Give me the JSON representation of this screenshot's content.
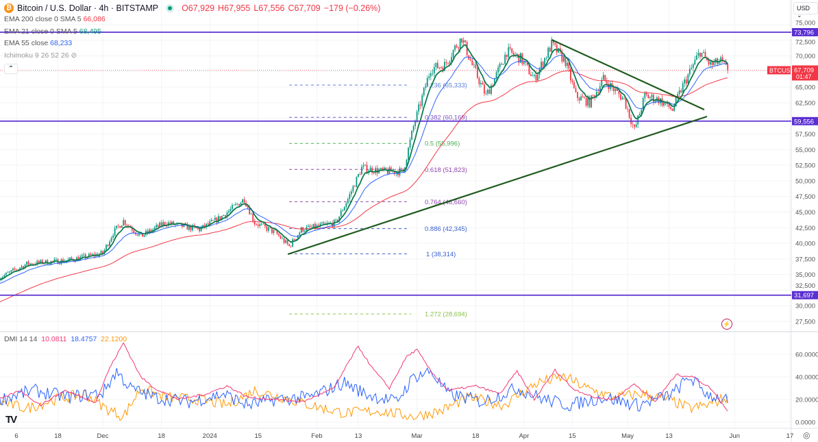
{
  "header": {
    "symbol_title": "Bitcoin / U.S. Dollar · 4h · BITSTAMP",
    "open": "O67,929",
    "high": "H67,955",
    "low": "L67,556",
    "close": "C67,709",
    "change": "−179 (−0.26%)",
    "currency": "USD"
  },
  "indicators": [
    {
      "label": "EMA 200 close 0 SMA 5",
      "value": "66,086",
      "color": "#f23645"
    },
    {
      "label": "EMA 21 close 0 SMA 5",
      "value": "68,495",
      "color": "#089981"
    },
    {
      "label": "EMA 55 close",
      "value": "68,233",
      "color": "#2962ff"
    },
    {
      "label": "Ichimoku 9 26 52 26",
      "value": ""
    }
  ],
  "dmi": {
    "label": "DMI 14 14",
    "adx": "10.0811",
    "plus_di": "18.4757",
    "minus_di": "22.1200"
  },
  "colors": {
    "up": "#089981",
    "down": "#f23645",
    "hline": "#5b2fd1",
    "trend": "#1e5a1e",
    "ema200": "#f23645",
    "ema55": "#2962ff",
    "ema21": "#0d7a4e",
    "adx": "#f23674",
    "plus_di": "#2962ff",
    "minus_di": "#ff9800"
  },
  "price_axis": {
    "ticks": [
      "75,000",
      "72,500",
      "70,000",
      "65,000",
      "62,500",
      "57,500",
      "55,000",
      "52,500",
      "50,000",
      "47,500",
      "45,000",
      "42,500",
      "40,000",
      "37,500",
      "35,000",
      "32,500",
      "30,000",
      "27,500"
    ],
    "min": 27500,
    "max": 75000,
    "last_price_tag": {
      "symbol": "BTCUSD",
      "price": "67,709",
      "countdown": "01:47",
      "value": 67709
    }
  },
  "dmi_axis": {
    "ticks": [
      "60.0000",
      "40.0000",
      "20.0000",
      "0.0000"
    ],
    "min": 0,
    "max": 60
  },
  "time_axis": {
    "labels": [
      {
        "text": "6",
        "day": 5
      },
      {
        "text": "18",
        "day": 17
      },
      {
        "text": "Dec",
        "day": 30
      },
      {
        "text": "18",
        "day": 47
      },
      {
        "text": "2024",
        "day": 61
      },
      {
        "text": "15",
        "day": 75
      },
      {
        "text": "Feb",
        "day": 92
      },
      {
        "text": "13",
        "day": 104
      },
      {
        "text": "Mar",
        "day": 121
      },
      {
        "text": "18",
        "day": 138
      },
      {
        "text": "Apr",
        "day": 152
      },
      {
        "text": "15",
        "day": 166
      },
      {
        "text": "May",
        "day": 182
      },
      {
        "text": "13",
        "day": 194
      },
      {
        "text": "Jun",
        "day": 213
      },
      {
        "text": "17",
        "day": 229
      }
    ]
  },
  "horizontal_levels": [
    {
      "price": 73796,
      "label": "73,796"
    },
    {
      "price": 59556,
      "label": "59,556"
    },
    {
      "price": 31697,
      "label": "31,697"
    }
  ],
  "fibonacci": [
    {
      "ratio": "0.236",
      "value": "65,333",
      "price": 65333,
      "color": "#5c7fd6"
    },
    {
      "ratio": "0.382",
      "value": "60,169",
      "price": 60169,
      "color": "#7e57c2"
    },
    {
      "ratio": "0.5",
      "value": "55,996",
      "price": 55996,
      "color": "#4caf50"
    },
    {
      "ratio": "0.618",
      "value": "51,823",
      "price": 51823,
      "color": "#8e44ad"
    },
    {
      "ratio": "0.764",
      "value": "46,660",
      "price": 46660,
      "color": "#8e44ad"
    },
    {
      "ratio": "0.886",
      "value": "42,345",
      "price": 42345,
      "color": "#3a5fcd"
    },
    {
      "ratio": "1",
      "value": "38,314",
      "price": 38314,
      "color": "#3a5fcd"
    },
    {
      "ratio": "1.272",
      "value": "28,694",
      "price": 28694,
      "color": "#8bc34a"
    }
  ],
  "trendlines": [
    {
      "name": "descending",
      "from": [
        160,
        72590
      ],
      "to": [
        204.2,
        61400
      ]
    },
    {
      "name": "ascending",
      "from": [
        83.6,
        38250
      ],
      "to": [
        205,
        60300
      ]
    }
  ],
  "chart_data": {
    "type": "candlestick",
    "title": "Bitcoin / U.S. Dollar · 4h · BITSTAMP",
    "x_unit": "days since 2023-11-01",
    "ylim": [
      27500,
      75000
    ],
    "price_path": [
      [
        0.2,
        34500
      ],
      [
        8,
        36700
      ],
      [
        20,
        37300
      ],
      [
        30,
        38400
      ],
      [
        33,
        41700
      ],
      [
        36,
        43600
      ],
      [
        41,
        41100
      ],
      [
        48,
        43300
      ],
      [
        58,
        42200
      ],
      [
        64,
        44100
      ],
      [
        71,
        47100
      ],
      [
        74,
        43300
      ],
      [
        80,
        41700
      ],
      [
        84,
        39500
      ],
      [
        87.5,
        42200
      ],
      [
        97.5,
        43300
      ],
      [
        101,
        47100
      ],
      [
        105,
        52100
      ],
      [
        111,
        51500
      ],
      [
        117,
        51500
      ],
      [
        120,
        58700
      ],
      [
        125,
        68000
      ],
      [
        129,
        68500
      ],
      [
        132,
        71300
      ],
      [
        134,
        72900
      ],
      [
        137,
        68500
      ],
      [
        141,
        63600
      ],
      [
        144,
        66900
      ],
      [
        147,
        70700
      ],
      [
        151,
        69600
      ],
      [
        155,
        66300
      ],
      [
        160,
        71800
      ],
      [
        164,
        69100
      ],
      [
        167,
        63600
      ],
      [
        171,
        62500
      ],
      [
        175,
        66300
      ],
      [
        181,
        63000
      ],
      [
        184,
        58100
      ],
      [
        187,
        63600
      ],
      [
        191,
        63000
      ],
      [
        195,
        61400
      ],
      [
        198,
        65200
      ],
      [
        200,
        67400
      ],
      [
        203,
        70700
      ],
      [
        206,
        68500
      ],
      [
        209,
        69100
      ],
      [
        211,
        67709
      ]
    ],
    "dmi_adx": [
      [
        0,
        20
      ],
      [
        6,
        28
      ],
      [
        12,
        15
      ],
      [
        19,
        28
      ],
      [
        24,
        22
      ],
      [
        28,
        18
      ],
      [
        32,
        48
      ],
      [
        36,
        70
      ],
      [
        41,
        40
      ],
      [
        45,
        30
      ],
      [
        52,
        20
      ],
      [
        60,
        25
      ],
      [
        66,
        32
      ],
      [
        72,
        22
      ],
      [
        80,
        20
      ],
      [
        88,
        18
      ],
      [
        97,
        30
      ],
      [
        101,
        52
      ],
      [
        104,
        67
      ],
      [
        108,
        48
      ],
      [
        113,
        30
      ],
      [
        118,
        58
      ],
      [
        121,
        64
      ],
      [
        125,
        45
      ],
      [
        130,
        28
      ],
      [
        138,
        32
      ],
      [
        145,
        25
      ],
      [
        150,
        45
      ],
      [
        155,
        20
      ],
      [
        161,
        46
      ],
      [
        166,
        30
      ],
      [
        172,
        22
      ],
      [
        178,
        20
      ],
      [
        184,
        34
      ],
      [
        190,
        18
      ],
      [
        196,
        42
      ],
      [
        201,
        40
      ],
      [
        206,
        30
      ],
      [
        211,
        10
      ]
    ],
    "dmi_plus": [
      [
        0,
        20
      ],
      [
        10,
        28
      ],
      [
        20,
        22
      ],
      [
        30,
        26
      ],
      [
        34,
        45
      ],
      [
        38,
        30
      ],
      [
        45,
        22
      ],
      [
        55,
        18
      ],
      [
        65,
        25
      ],
      [
        72,
        15
      ],
      [
        80,
        20
      ],
      [
        90,
        22
      ],
      [
        100,
        35
      ],
      [
        106,
        25
      ],
      [
        115,
        18
      ],
      [
        120,
        40
      ],
      [
        125,
        45
      ],
      [
        130,
        25
      ],
      [
        140,
        18
      ],
      [
        150,
        30
      ],
      [
        158,
        20
      ],
      [
        165,
        15
      ],
      [
        175,
        22
      ],
      [
        185,
        15
      ],
      [
        195,
        25
      ],
      [
        200,
        40
      ],
      [
        205,
        25
      ],
      [
        211,
        18.5
      ]
    ],
    "dmi_minus": [
      [
        0,
        18
      ],
      [
        8,
        12
      ],
      [
        16,
        20
      ],
      [
        25,
        25
      ],
      [
        31,
        12
      ],
      [
        36,
        5
      ],
      [
        41,
        30
      ],
      [
        48,
        22
      ],
      [
        58,
        20
      ],
      [
        66,
        15
      ],
      [
        74,
        28
      ],
      [
        82,
        22
      ],
      [
        90,
        15
      ],
      [
        100,
        8
      ],
      [
        110,
        10
      ],
      [
        120,
        5
      ],
      [
        128,
        10
      ],
      [
        136,
        22
      ],
      [
        146,
        15
      ],
      [
        156,
        35
      ],
      [
        164,
        40
      ],
      [
        170,
        30
      ],
      [
        178,
        22
      ],
      [
        186,
        25
      ],
      [
        194,
        20
      ],
      [
        200,
        12
      ],
      [
        205,
        15
      ],
      [
        211,
        22.1
      ]
    ]
  }
}
